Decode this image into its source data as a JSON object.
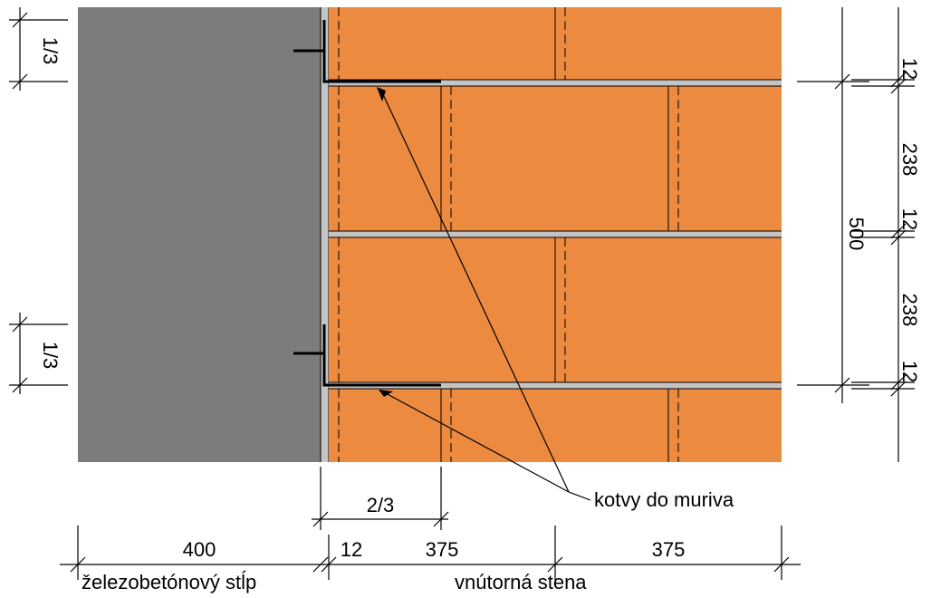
{
  "colors": {
    "concrete": "#7c7c7c",
    "brick": "#ec8a3f",
    "mortar": "#c4c4c4",
    "line": "#000000"
  },
  "labels": {
    "anchors": "kotvy do muriva",
    "column": "železobetónový stĺp",
    "wall": "vnútorná stena"
  },
  "dimensions": {
    "column_width": "400",
    "joint_width": "12",
    "brick_length_1": "375",
    "brick_length_2": "375",
    "anchor_length": "2/3",
    "anchor_offset_top": "1/3",
    "anchor_offset_bottom": "1/3",
    "overall_height": "500",
    "joint_top": "12",
    "brick_height_1": "238",
    "joint_middle": "12",
    "brick_height_2": "238",
    "joint_bottom": "12"
  }
}
